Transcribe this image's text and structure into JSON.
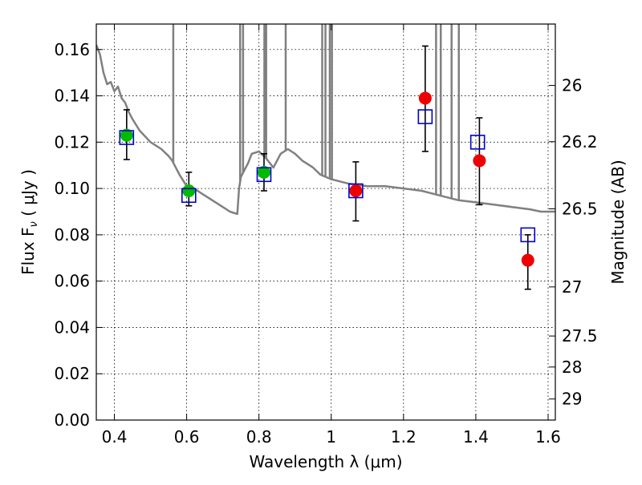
{
  "chart_data": {
    "type": "scatter",
    "xlabel": "Wavelength  λ (μm)",
    "ylabel": "Flux  F",
    "ylabel_subscript": "ν",
    "ylabel_unit": " ( μJy )",
    "y2label": "Magnitude (AB)",
    "xlim": [
      0.35,
      1.62
    ],
    "ylim": [
      0.0,
      0.171
    ],
    "grid": true,
    "x_ticks": [
      0.4,
      0.6,
      0.8,
      1.0,
      1.2,
      1.4,
      1.6
    ],
    "x_tick_labels": [
      "0.4",
      "0.6",
      "0.8",
      "1",
      "1.2",
      "1.4",
      "1.6"
    ],
    "y_ticks": [
      0.0,
      0.02,
      0.04,
      0.06,
      0.08,
      0.1,
      0.12,
      0.14,
      0.16
    ],
    "y_tick_labels": [
      "0.00",
      "0.02",
      "0.04",
      "0.06",
      "0.08",
      "0.10",
      "0.12",
      "0.14",
      "0.16"
    ],
    "y2_ticks": [
      {
        "label": "26",
        "flux": 0.1445
      },
      {
        "label": "26.2",
        "flux": 0.1202
      },
      {
        "label": "26.5",
        "flux": 0.0912
      },
      {
        "label": "27",
        "flux": 0.0575
      },
      {
        "label": "27.5",
        "flux": 0.0363
      },
      {
        "label": "28",
        "flux": 0.0229
      },
      {
        "label": "29",
        "flux": 0.0091
      }
    ],
    "colors": {
      "sed": "#808080",
      "green": "#00bb00",
      "red": "#ee0000",
      "model_box": "#0000cc",
      "errorbar": "#000000"
    },
    "model_spectrum": {
      "x": [
        0.35,
        0.36,
        0.37,
        0.38,
        0.39,
        0.4,
        0.41,
        0.42,
        0.43,
        0.44,
        0.45,
        0.47,
        0.5,
        0.53,
        0.55,
        0.56,
        0.58,
        0.6,
        0.62,
        0.65,
        0.68,
        0.7,
        0.72,
        0.74,
        0.745,
        0.75,
        0.77,
        0.78,
        0.8,
        0.82,
        0.84,
        0.86,
        0.88,
        0.9,
        0.92,
        0.95,
        0.97,
        1.0,
        1.05,
        1.1,
        1.15,
        1.2,
        1.25,
        1.3,
        1.35,
        1.4,
        1.45,
        1.5,
        1.55,
        1.58,
        1.62
      ],
      "y": [
        0.162,
        0.158,
        0.15,
        0.145,
        0.146,
        0.142,
        0.144,
        0.139,
        0.137,
        0.133,
        0.13,
        0.125,
        0.12,
        0.117,
        0.114,
        0.112,
        0.106,
        0.101,
        0.1,
        0.097,
        0.094,
        0.092,
        0.09,
        0.089,
        0.1,
        0.105,
        0.111,
        0.115,
        0.116,
        0.113,
        0.109,
        0.115,
        0.117,
        0.115,
        0.112,
        0.109,
        0.106,
        0.104,
        0.102,
        0.101,
        0.101,
        0.1,
        0.099,
        0.097,
        0.095,
        0.094,
        0.093,
        0.092,
        0.091,
        0.09,
        0.09
      ]
    },
    "spectrum_spikes": [
      {
        "x": 0.563,
        "top": 0.171
      },
      {
        "x": 0.748,
        "top": 0.171
      },
      {
        "x": 0.756,
        "top": 0.171
      },
      {
        "x": 0.815,
        "top": 0.171
      },
      {
        "x": 0.82,
        "top": 0.171
      },
      {
        "x": 0.874,
        "top": 0.171
      },
      {
        "x": 0.975,
        "top": 0.171
      },
      {
        "x": 0.984,
        "top": 0.171
      },
      {
        "x": 0.996,
        "top": 0.171
      },
      {
        "x": 1.002,
        "top": 0.171
      },
      {
        "x": 1.29,
        "top": 0.171
      },
      {
        "x": 1.303,
        "top": 0.171
      },
      {
        "x": 1.333,
        "top": 0.171
      },
      {
        "x": 1.353,
        "top": 0.171
      }
    ],
    "series": [
      {
        "marker": "circle",
        "color": "green",
        "points": [
          {
            "x": 0.434,
            "y": 0.123
          },
          {
            "x": 0.606,
            "y": 0.099
          },
          {
            "x": 0.814,
            "y": 0.107
          }
        ]
      },
      {
        "marker": "circle",
        "color": "red",
        "points": [
          {
            "x": 1.068,
            "y": 0.099
          },
          {
            "x": 1.26,
            "y": 0.139
          },
          {
            "x": 1.41,
            "y": 0.112
          },
          {
            "x": 1.544,
            "y": 0.069
          }
        ]
      },
      {
        "marker": "open-square",
        "color": "model_box",
        "points": [
          {
            "x": 0.434,
            "y": 0.122
          },
          {
            "x": 0.606,
            "y": 0.097
          },
          {
            "x": 0.814,
            "y": 0.106
          },
          {
            "x": 1.068,
            "y": 0.099
          },
          {
            "x": 1.26,
            "y": 0.131
          },
          {
            "x": 1.405,
            "y": 0.12
          },
          {
            "x": 1.544,
            "y": 0.08
          }
        ]
      }
    ],
    "errorbars": [
      {
        "x": 0.434,
        "low": 0.1125,
        "high": 0.134
      },
      {
        "x": 0.606,
        "low": 0.0925,
        "high": 0.107
      },
      {
        "x": 0.814,
        "low": 0.099,
        "high": 0.115
      },
      {
        "x": 1.068,
        "low": 0.086,
        "high": 0.1115
      },
      {
        "x": 1.26,
        "low": 0.116,
        "high": 0.1615
      },
      {
        "x": 1.41,
        "low": 0.093,
        "high": 0.1305
      },
      {
        "x": 1.544,
        "low": 0.0565,
        "high": 0.08
      }
    ]
  }
}
